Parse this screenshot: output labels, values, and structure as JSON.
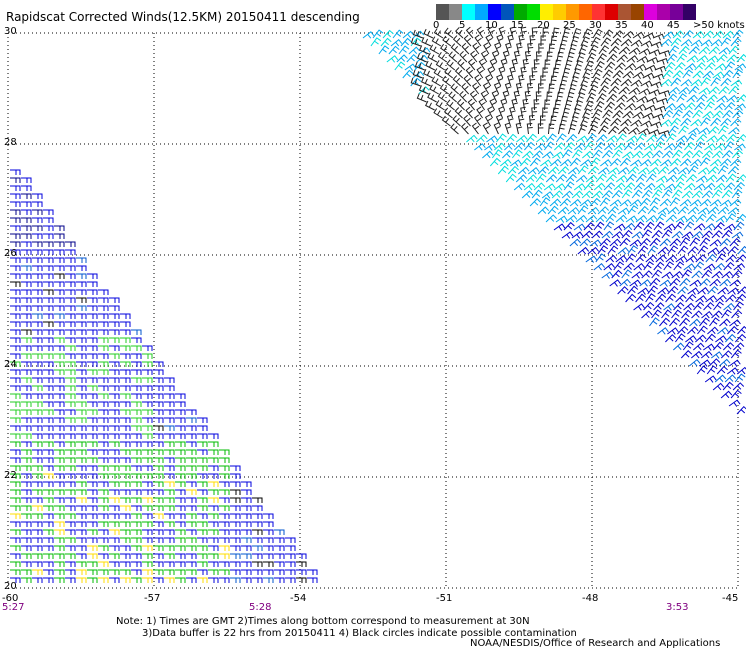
{
  "title": "Rapidscat Corrected Winds(12.5KM) 20150411 descending",
  "colorbar": {
    "colors": [
      "#555555",
      "#888888",
      "#00ffff",
      "#00aaff",
      "#0000ff",
      "#0055bb",
      "#00aa00",
      "#00dd00",
      "#ffee00",
      "#ffcc00",
      "#ff9900",
      "#ff6600",
      "#ff3333",
      "#dd0000",
      "#aa5533",
      "#994400",
      "#dd00dd",
      "#aa00aa",
      "#770099",
      "#330066"
    ],
    "labels": [
      "0",
      "5",
      "10",
      "15",
      "20",
      "25",
      "30",
      "35",
      "40",
      "45",
      ">50 knots"
    ]
  },
  "axes": {
    "lat_labels": [
      "30",
      "28",
      "26",
      "24",
      "22",
      "20"
    ],
    "lon_labels": [
      "-60",
      "-57",
      "-54",
      "-51",
      "-48",
      "-45"
    ],
    "lat_values": [
      30,
      28,
      26,
      24,
      22,
      20
    ],
    "lon_values": [
      -60,
      -57,
      -54,
      -51,
      -48,
      -45
    ]
  },
  "swath_times": [
    "5:27",
    "5:28",
    "3:53"
  ],
  "notes": [
    "Note: 1) Times are GMT 2)Times along bottom correspond to measurement at 30N",
    "3)Data buffer is 22 hrs from 20150411 4) Black circles indicate possible contamination"
  ],
  "credit": "NOAA/NESDIS/Office of Research and Applications",
  "wind_regions": {
    "west_swath": "predominantly 10-20 knot winds (blue/green) with scattered 20-25 knot (yellow) near 20-22N; a few 0-5 knot (black) barbs",
    "east_swath": "0-5 knot (black) winds north of 28N near -51 to -46; 5-15 knot (cyan/blue) winds to the south"
  }
}
